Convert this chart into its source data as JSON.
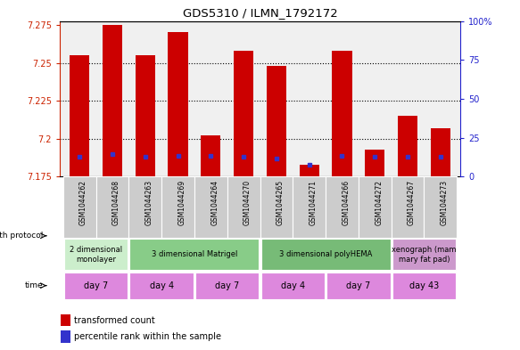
{
  "title": "GDS5310 / ILMN_1792172",
  "samples": [
    "GSM1044262",
    "GSM1044268",
    "GSM1044263",
    "GSM1044269",
    "GSM1044264",
    "GSM1044270",
    "GSM1044265",
    "GSM1044271",
    "GSM1044266",
    "GSM1044272",
    "GSM1044267",
    "GSM1044273"
  ],
  "bar_values": [
    7.255,
    7.275,
    7.255,
    7.27,
    7.202,
    7.258,
    7.248,
    7.183,
    7.258,
    7.193,
    7.215,
    7.207
  ],
  "blue_values": [
    7.188,
    7.19,
    7.188,
    7.189,
    7.189,
    7.188,
    7.187,
    7.183,
    7.189,
    7.188,
    7.188,
    7.188
  ],
  "y_min": 7.175,
  "y_max": 7.2775,
  "y_ticks_left": [
    7.175,
    7.2,
    7.225,
    7.25,
    7.275
  ],
  "y_ticks_right": [
    0,
    25,
    50,
    75,
    100
  ],
  "bar_color": "#cc0000",
  "blue_color": "#3333cc",
  "left_tick_color": "#cc2200",
  "right_tick_color": "#2222cc",
  "plot_bg": "#f0f0f0",
  "sample_bg": "#cccccc",
  "groups": [
    {
      "label": "2 dimensional\nmonolayer",
      "start": 0,
      "end": 2,
      "color": "#cceecc"
    },
    {
      "label": "3 dimensional Matrigel",
      "start": 2,
      "end": 6,
      "color": "#88cc88"
    },
    {
      "label": "3 dimensional polyHEMA",
      "start": 6,
      "end": 10,
      "color": "#77bb77"
    },
    {
      "label": "xenograph (mam\nmary fat pad)",
      "start": 10,
      "end": 12,
      "color": "#cc99cc"
    }
  ],
  "time_groups": [
    {
      "label": "day 7",
      "start": 0,
      "end": 2
    },
    {
      "label": "day 4",
      "start": 2,
      "end": 4
    },
    {
      "label": "day 7",
      "start": 4,
      "end": 6
    },
    {
      "label": "day 4",
      "start": 6,
      "end": 8
    },
    {
      "label": "day 7",
      "start": 8,
      "end": 10
    },
    {
      "label": "day 43",
      "start": 10,
      "end": 12
    }
  ],
  "time_color": "#dd88dd",
  "legend_items": [
    {
      "color": "#cc0000",
      "label": "transformed count"
    },
    {
      "color": "#3333cc",
      "label": "percentile rank within the sample"
    }
  ],
  "gp_label": "growth protocol",
  "time_label": "time"
}
